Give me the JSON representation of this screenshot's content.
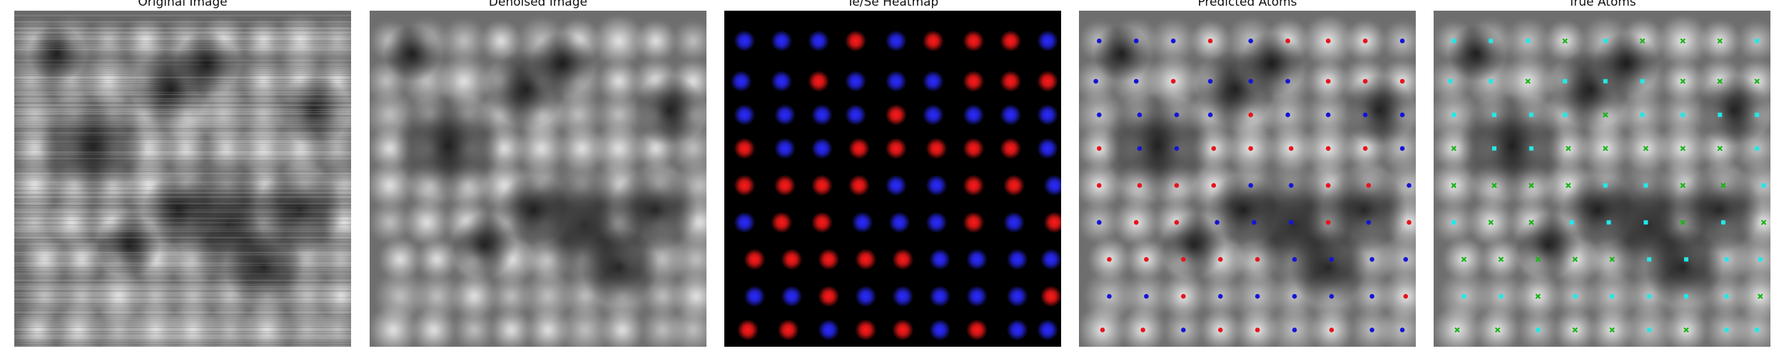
{
  "figure": {
    "panels": [
      {
        "title": "Original Image",
        "kind": "stm"
      },
      {
        "title": "Denoised Image",
        "kind": "stm"
      },
      {
        "title": "Te/Se Heatmap",
        "kind": "heatmap"
      },
      {
        "title": "Predicted Atoms",
        "kind": "predicted"
      },
      {
        "title": "True Atoms",
        "kind": "true"
      }
    ]
  },
  "colors": {
    "te": "#ff1a1a",
    "se": "#2a2aff",
    "pred_te": "#e8141c",
    "pred_se": "#1414d8",
    "true_a": "#15b515",
    "true_b": "#22e8e8",
    "heatmap_bg": "#000000"
  },
  "atom_sites": {
    "rows": [
      {
        "y": 0.09,
        "x": [
          0.06,
          0.17,
          0.28,
          0.39,
          0.51,
          0.62,
          0.74,
          0.85,
          0.96
        ],
        "species": [
          "Se",
          "Se",
          "Se",
          "Te",
          "Se",
          "Te",
          "Te",
          "Te",
          "Se"
        ]
      },
      {
        "y": 0.21,
        "x": [
          0.05,
          0.17,
          0.28,
          0.39,
          0.51,
          0.62,
          0.74,
          0.85,
          0.96
        ],
        "species": [
          "Se",
          "Se",
          "Te",
          "Se",
          "Se",
          "Se",
          "Te",
          "Te",
          "Te"
        ]
      },
      {
        "y": 0.31,
        "x": [
          0.06,
          0.18,
          0.29,
          0.39,
          0.51,
          0.62,
          0.74,
          0.85,
          0.96
        ],
        "species": [
          "Se",
          "Se",
          "Se",
          "Se",
          "Te",
          "Se",
          "Se",
          "Se",
          "Se"
        ]
      },
      {
        "y": 0.41,
        "x": [
          0.06,
          0.18,
          0.29,
          0.4,
          0.51,
          0.63,
          0.74,
          0.85,
          0.96
        ],
        "species": [
          "Te",
          "Se",
          "Se",
          "Te",
          "Te",
          "Te",
          "Te",
          "Te",
          "Se"
        ]
      },
      {
        "y": 0.52,
        "x": [
          0.06,
          0.18,
          0.29,
          0.4,
          0.51,
          0.63,
          0.74,
          0.86,
          0.98
        ],
        "species": [
          "Te",
          "Te",
          "Te",
          "Te",
          "Se",
          "Se",
          "Te",
          "Te",
          "Se"
        ]
      },
      {
        "y": 0.63,
        "x": [
          0.06,
          0.17,
          0.29,
          0.41,
          0.52,
          0.63,
          0.74,
          0.86,
          0.98
        ],
        "species": [
          "Se",
          "Te",
          "Te",
          "Se",
          "Se",
          "Se",
          "Te",
          "Se",
          "Te"
        ]
      },
      {
        "y": 0.74,
        "x": [
          0.09,
          0.2,
          0.31,
          0.42,
          0.53,
          0.64,
          0.75,
          0.87,
          0.97
        ],
        "species": [
          "Te",
          "Te",
          "Te",
          "Te",
          "Te",
          "Se",
          "Se",
          "Se",
          "Se"
        ]
      },
      {
        "y": 0.85,
        "x": [
          0.09,
          0.2,
          0.31,
          0.42,
          0.53,
          0.64,
          0.75,
          0.87,
          0.97
        ],
        "species": [
          "Se",
          "Se",
          "Te",
          "Se",
          "Se",
          "Se",
          "Se",
          "Se",
          "Te"
        ]
      },
      {
        "y": 0.95,
        "x": [
          0.07,
          0.19,
          0.31,
          0.42,
          0.53,
          0.64,
          0.75,
          0.87,
          0.96
        ],
        "species": [
          "Te",
          "Te",
          "Se",
          "Te",
          "Te",
          "Se",
          "Te",
          "Se",
          "Se"
        ]
      }
    ]
  }
}
